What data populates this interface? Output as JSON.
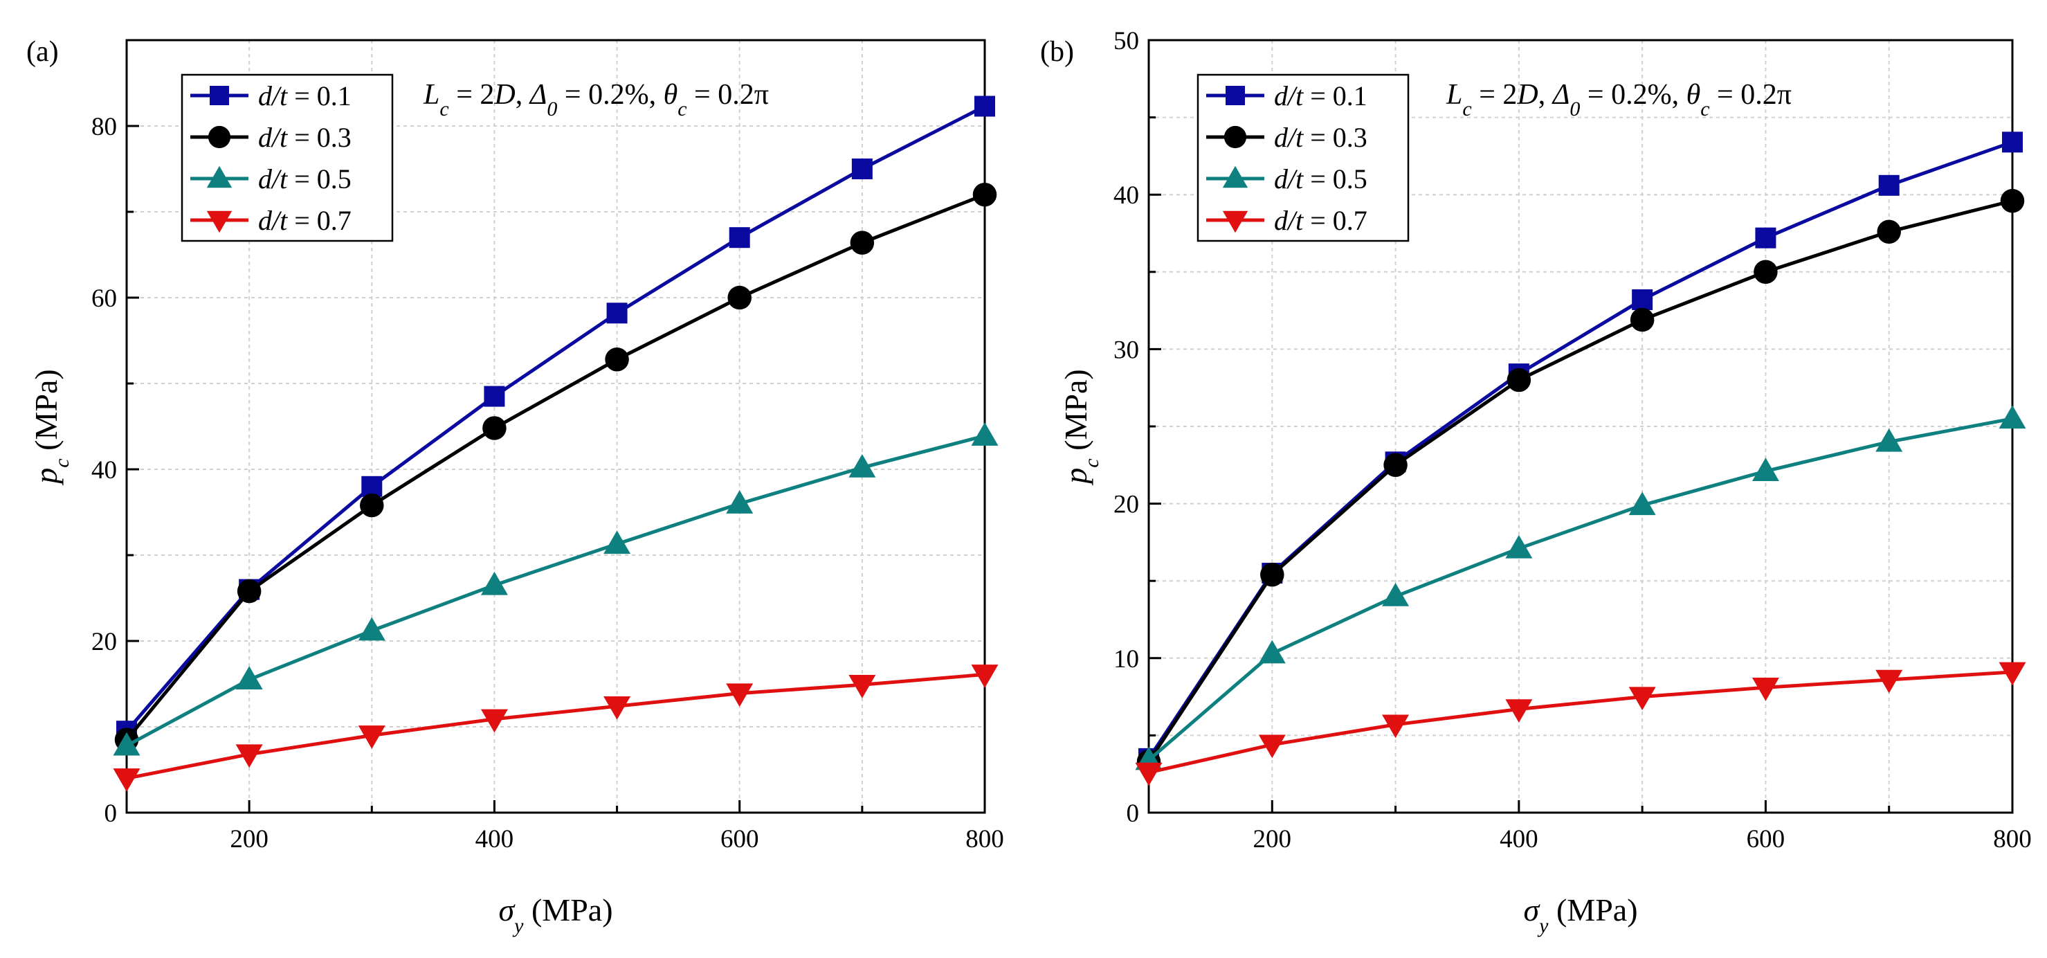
{
  "chart_data": [
    {
      "type": "line",
      "panel_label": "(a)",
      "annotation": "L_c = 2D, Δ_0 = 0.2%, θ_c = 0.2π",
      "xlabel": "σ_y (MPa)",
      "ylabel": "p_c (MPa)",
      "xlim": [
        100,
        800
      ],
      "ylim": [
        0,
        90
      ],
      "xticks": [
        200,
        400,
        600,
        800
      ],
      "yticks": [
        0,
        20,
        40,
        60,
        80
      ],
      "grid": true,
      "legend_position": "top-left",
      "x": [
        100,
        200,
        300,
        400,
        500,
        600,
        700,
        800
      ],
      "series": [
        {
          "name": "d/t = 0.1",
          "label_var": "d/t",
          "label_val": " = 0.1",
          "color": "#0a0aa0",
          "marker": "square",
          "values": [
            9.5,
            26,
            38,
            48.5,
            58.2,
            67,
            75,
            82.3
          ]
        },
        {
          "name": "d/t = 0.3",
          "label_var": "d/t",
          "label_val": " = 0.3",
          "color": "#000000",
          "marker": "circle",
          "values": [
            8.5,
            25.8,
            35.8,
            44.8,
            52.8,
            60,
            66.4,
            72
          ]
        },
        {
          "name": "d/t = 0.5",
          "label_var": "d/t",
          "label_val": " = 0.5",
          "color": "#0f8080",
          "marker": "triangle-up",
          "values": [
            7.8,
            15.5,
            21.2,
            26.5,
            31.3,
            36,
            40.2,
            43.9
          ]
        },
        {
          "name": "d/t = 0.7",
          "label_var": "d/t",
          "label_val": " = 0.7",
          "color": "#e01010",
          "marker": "triangle-down",
          "values": [
            4,
            6.8,
            9,
            10.9,
            12.4,
            13.9,
            14.9,
            16.1
          ]
        }
      ]
    },
    {
      "type": "line",
      "panel_label": "(b)",
      "annotation": "L_c = 2D, Δ_0 = 0.2%, θ_c = 0.2π",
      "xlabel": "σ_y (MPa)",
      "ylabel": "p_c (MPa)",
      "xlim": [
        100,
        800
      ],
      "ylim": [
        0,
        50
      ],
      "xticks": [
        200,
        400,
        600,
        800
      ],
      "yticks": [
        0,
        10,
        20,
        30,
        40,
        50
      ],
      "grid": true,
      "legend_position": "top-left",
      "x": [
        100,
        200,
        300,
        400,
        500,
        600,
        700,
        800
      ],
      "series": [
        {
          "name": "d/t = 0.1",
          "label_var": "d/t",
          "label_val": " = 0.1",
          "color": "#0a0aa0",
          "marker": "square",
          "values": [
            3.5,
            15.5,
            22.7,
            28.4,
            33.2,
            37.2,
            40.6,
            43.4
          ]
        },
        {
          "name": "d/t = 0.3",
          "label_var": "d/t",
          "label_val": " = 0.3",
          "color": "#000000",
          "marker": "circle",
          "values": [
            3.3,
            15.4,
            22.5,
            28,
            31.9,
            35,
            37.6,
            39.6
          ]
        },
        {
          "name": "d/t = 0.5",
          "label_var": "d/t",
          "label_val": " = 0.5",
          "color": "#0f8080",
          "marker": "triangle-up",
          "values": [
            3.4,
            10.3,
            14,
            17.1,
            19.9,
            22.1,
            24,
            25.5
          ]
        },
        {
          "name": "d/t = 0.7",
          "label_var": "d/t",
          "label_val": " = 0.7",
          "color": "#e01010",
          "marker": "triangle-down",
          "values": [
            2.6,
            4.4,
            5.7,
            6.7,
            7.5,
            8.1,
            8.6,
            9.1
          ]
        }
      ]
    }
  ]
}
